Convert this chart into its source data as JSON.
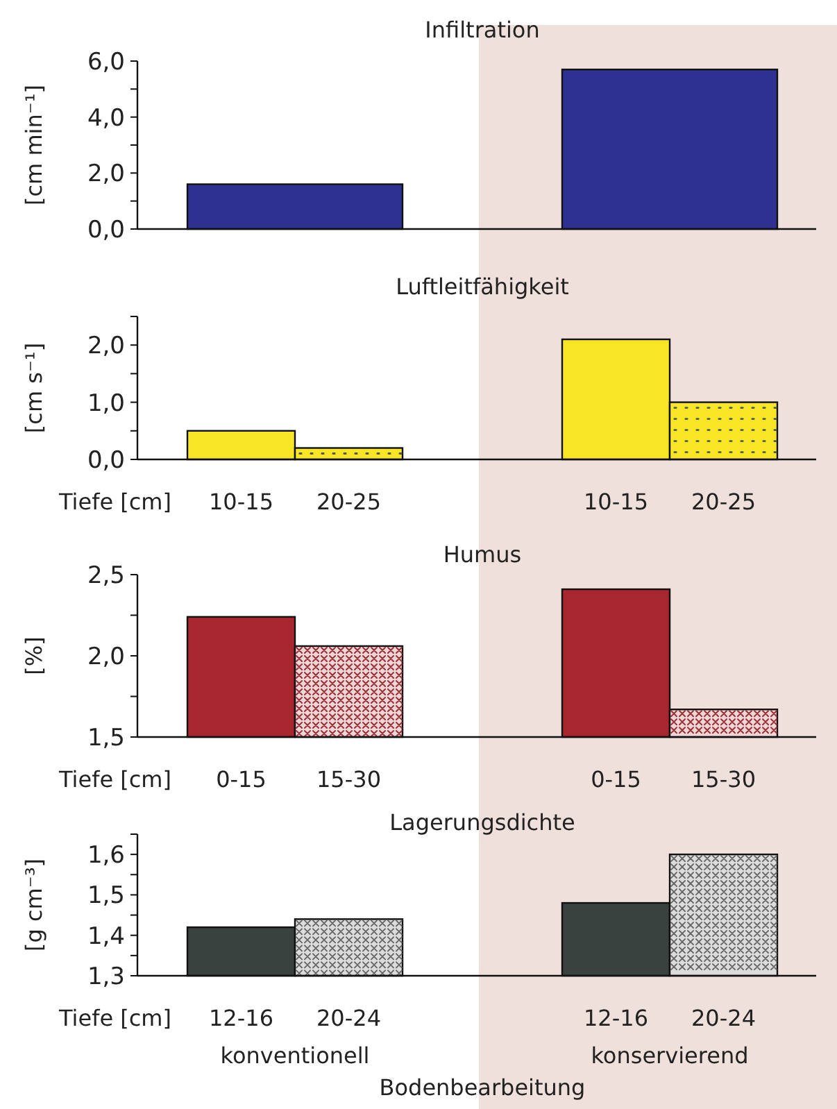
{
  "chart_data": [
    {
      "type": "bar",
      "title": "Infiltration",
      "ylabel": "[cm min⁻¹]",
      "categories": [
        null,
        null
      ],
      "values": [
        1.6,
        5.7
      ],
      "colors": [
        "#2e3192",
        "#2e3192"
      ],
      "ylim": [
        0,
        6
      ],
      "yticks": [
        {
          "value": 0,
          "label": "0,0"
        },
        {
          "value": 1,
          "label": null
        },
        {
          "value": 2,
          "label": "2,0"
        },
        {
          "value": 3,
          "label": null
        },
        {
          "value": 4,
          "label": "4,0"
        },
        {
          "value": 5,
          "label": null
        },
        {
          "value": 6,
          "label": "6,0"
        }
      ],
      "grid": false
    },
    {
      "type": "bar",
      "title": "Luftleitfähigkeit",
      "ylabel": "[cm s⁻¹]",
      "xlabel": "Tiefe [cm]",
      "categories": [
        "10-15",
        "20-25",
        "10-15",
        "20-25"
      ],
      "values": [
        0.5,
        0.2,
        2.1,
        1.0
      ],
      "colors": [
        "#f7e526",
        "#f7e526",
        "#f7e526",
        "#f7e526"
      ],
      "ylim": [
        0,
        2.5
      ],
      "yticks": [
        {
          "value": 0,
          "label": "0,0"
        },
        {
          "value": 0.5,
          "label": null
        },
        {
          "value": 1,
          "label": "1,0"
        },
        {
          "value": 1.5,
          "label": null
        },
        {
          "value": 2,
          "label": "2,0"
        },
        {
          "value": 2.5,
          "label": null
        }
      ],
      "grid": false
    },
    {
      "type": "bar",
      "title": "Humus",
      "ylabel": "[%]",
      "xlabel": "Tiefe [cm]",
      "categories": [
        "0-15",
        "15-30",
        "0-15",
        "15-30"
      ],
      "values": [
        2.24,
        2.06,
        2.41,
        1.67
      ],
      "colors": [
        "#a8262d",
        "#f2d6d7",
        "#a8262d",
        "#f2d6d7"
      ],
      "ylim": [
        1.5,
        2.5
      ],
      "yticks": [
        {
          "value": 1.5,
          "label": "1,5"
        },
        {
          "value": 1.75,
          "label": null
        },
        {
          "value": 2,
          "label": "2,0"
        },
        {
          "value": 2.25,
          "label": null
        },
        {
          "value": 2.5,
          "label": "2,5"
        }
      ],
      "grid": false
    },
    {
      "type": "bar",
      "title": "Lagerungsdichte",
      "ylabel": "[g cm⁻³]",
      "xlabel": "Tiefe [cm]",
      "categories": [
        "12-16",
        "20-24",
        "12-16",
        "20-24"
      ],
      "values": [
        1.42,
        1.44,
        1.48,
        1.6
      ],
      "colors": [
        "#3a4240",
        "#dcdcdc",
        "#3a4240",
        "#dcdcdc"
      ],
      "ylim": [
        1.3,
        1.65
      ],
      "yticks": [
        {
          "value": 1.3,
          "label": "1,3"
        },
        {
          "value": 1.35,
          "label": null
        },
        {
          "value": 1.4,
          "label": "1,4"
        },
        {
          "value": 1.45,
          "label": null
        },
        {
          "value": 1.5,
          "label": "1,5"
        },
        {
          "value": 1.55,
          "label": null
        },
        {
          "value": 1.6,
          "label": "1,6"
        },
        {
          "value": 1.65,
          "label": null
        }
      ],
      "grid": false,
      "annotations": [
        "konventionell",
        "konservierend",
        "Bodenbearbeitung"
      ]
    }
  ]
}
